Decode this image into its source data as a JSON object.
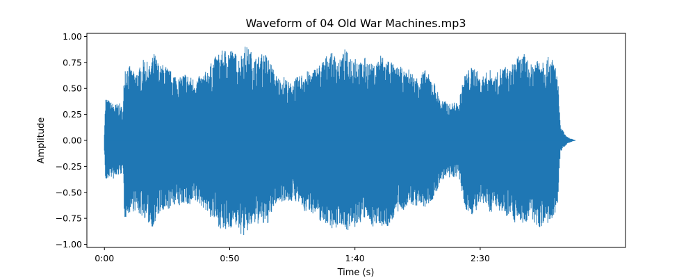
{
  "chart_data": {
    "type": "area",
    "title": "Waveform of 04 Old War Machines.mp3",
    "xlabel": "Time (s)",
    "ylabel": "Amplitude",
    "xlim": [
      -7,
      208
    ],
    "ylim": [
      -1.03,
      1.03
    ],
    "x_ticks": [
      {
        "value": 0,
        "label": "0:00"
      },
      {
        "value": 50,
        "label": "0:50"
      },
      {
        "value": 100,
        "label": "1:40"
      },
      {
        "value": 150,
        "label": "2:30"
      }
    ],
    "y_ticks": [
      {
        "value": 1.0,
        "label": "1.00"
      },
      {
        "value": 0.75,
        "label": "0.75"
      },
      {
        "value": 0.5,
        "label": "0.50"
      },
      {
        "value": 0.25,
        "label": "0.25"
      },
      {
        "value": 0.0,
        "label": "0.00"
      },
      {
        "value": -0.25,
        "label": "−0.25"
      },
      {
        "value": -0.5,
        "label": "−0.50"
      },
      {
        "value": -0.75,
        "label": "−0.75"
      },
      {
        "value": -1.0,
        "label": "−1.00"
      }
    ],
    "color": "#1f77b4",
    "grid": false,
    "series": [
      {
        "time_s": [
          0,
          0.5,
          2,
          4,
          6,
          7.5,
          8,
          10,
          12,
          14,
          16,
          18,
          20,
          22,
          24,
          26,
          28,
          30,
          32,
          34,
          36,
          38,
          40,
          42,
          44,
          46,
          48,
          50,
          52,
          54,
          56,
          58,
          60,
          62,
          64,
          66,
          68,
          70,
          72,
          74,
          76,
          78,
          80,
          82,
          84,
          86,
          88,
          90,
          92,
          94,
          96,
          98,
          100,
          102,
          104,
          106,
          108,
          110,
          112,
          114,
          116,
          118,
          120,
          122,
          124,
          126,
          128,
          130,
          132,
          134,
          136,
          138,
          140,
          141.5,
          142,
          144,
          146,
          148,
          150,
          152,
          154,
          156,
          158,
          160,
          162,
          164,
          166,
          168,
          170,
          172,
          174,
          176,
          178,
          180,
          181,
          182,
          183,
          184,
          185,
          186,
          187,
          188
        ],
        "peak_max": [
          0.1,
          0.42,
          0.38,
          0.35,
          0.36,
          0.3,
          0.75,
          0.72,
          0.65,
          0.7,
          0.8,
          0.72,
          0.85,
          0.72,
          0.74,
          0.68,
          0.65,
          0.6,
          0.66,
          0.62,
          0.6,
          0.62,
          0.65,
          0.72,
          0.8,
          0.85,
          0.88,
          0.9,
          0.85,
          0.8,
          0.92,
          0.88,
          0.8,
          0.82,
          0.85,
          0.78,
          0.65,
          0.6,
          0.62,
          0.55,
          0.6,
          0.62,
          0.68,
          0.66,
          0.7,
          0.74,
          0.8,
          0.86,
          0.82,
          0.78,
          0.88,
          0.82,
          0.85,
          0.75,
          0.8,
          0.75,
          0.72,
          0.85,
          0.78,
          0.8,
          0.7,
          0.72,
          0.65,
          0.7,
          0.6,
          0.65,
          0.68,
          0.62,
          0.55,
          0.4,
          0.38,
          0.35,
          0.38,
          0.33,
          0.45,
          0.65,
          0.7,
          0.72,
          0.6,
          0.65,
          0.68,
          0.62,
          0.7,
          0.72,
          0.68,
          0.82,
          0.8,
          0.84,
          0.72,
          0.8,
          0.84,
          0.78,
          0.82,
          0.74,
          0.6,
          0.14,
          0.1,
          0.05,
          0.03,
          0.02,
          0.01,
          0.0
        ],
        "peak_min": [
          -0.1,
          -0.42,
          -0.35,
          -0.38,
          -0.33,
          -0.32,
          -0.76,
          -0.7,
          -0.68,
          -0.72,
          -0.75,
          -0.82,
          -0.84,
          -0.7,
          -0.72,
          -0.66,
          -0.62,
          -0.64,
          -0.6,
          -0.66,
          -0.6,
          -0.62,
          -0.66,
          -0.74,
          -0.78,
          -0.84,
          -0.9,
          -0.86,
          -0.8,
          -0.9,
          -0.93,
          -0.85,
          -0.82,
          -0.8,
          -0.84,
          -0.78,
          -0.62,
          -0.6,
          -0.58,
          -0.6,
          -0.58,
          -0.62,
          -0.7,
          -0.68,
          -0.72,
          -0.78,
          -0.8,
          -0.82,
          -0.88,
          -0.8,
          -0.85,
          -0.88,
          -0.85,
          -0.8,
          -0.76,
          -0.8,
          -0.85,
          -0.8,
          -0.86,
          -0.82,
          -0.72,
          -0.7,
          -0.66,
          -0.62,
          -0.64,
          -0.62,
          -0.66,
          -0.6,
          -0.56,
          -0.4,
          -0.36,
          -0.38,
          -0.35,
          -0.36,
          -0.42,
          -0.66,
          -0.72,
          -0.7,
          -0.64,
          -0.62,
          -0.7,
          -0.65,
          -0.68,
          -0.74,
          -0.7,
          -0.8,
          -0.78,
          -0.82,
          -0.74,
          -0.82,
          -0.84,
          -0.8,
          -0.82,
          -0.76,
          -0.58,
          -0.12,
          -0.08,
          -0.05,
          -0.03,
          -0.02,
          -0.01,
          0.0
        ]
      }
    ]
  }
}
